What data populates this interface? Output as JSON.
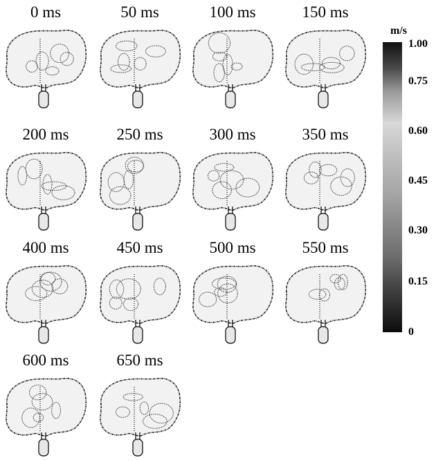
{
  "panels": [
    {
      "label": "0 ms"
    },
    {
      "label": "50 ms"
    },
    {
      "label": "100 ms"
    },
    {
      "label": "150 ms"
    },
    {
      "label": "200 ms"
    },
    {
      "label": "250 ms"
    },
    {
      "label": "300 ms"
    },
    {
      "label": "350 ms"
    },
    {
      "label": "400 ms"
    },
    {
      "label": "450 ms"
    },
    {
      "label": "500 ms"
    },
    {
      "label": "550 ms"
    },
    {
      "label": "600 ms"
    },
    {
      "label": "650 ms"
    }
  ],
  "colorbar": {
    "unit": "m/s",
    "ticks": [
      "1.00",
      "0.75",
      "0.60",
      "0.45",
      "0.30",
      "0.15",
      "0"
    ]
  }
}
